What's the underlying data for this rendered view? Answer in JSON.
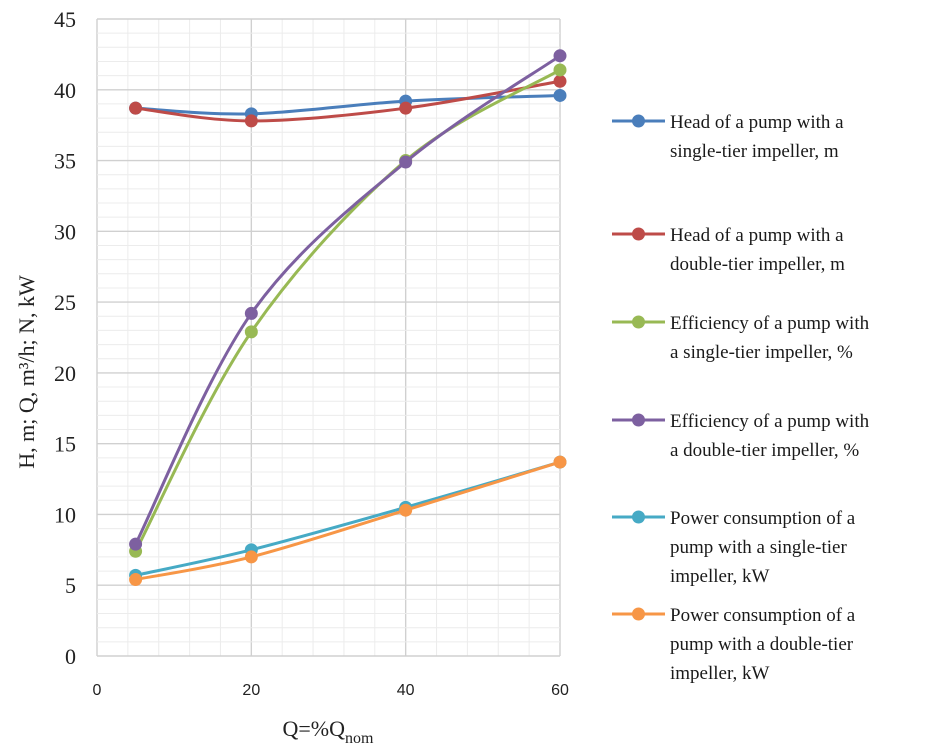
{
  "chart_data": {
    "type": "line",
    "xlabel_main": "Q=%Q",
    "xlabel_sub": "nom",
    "ylabel": "H, m; Q, m³/h; N, kW",
    "xlim": [
      0,
      60
    ],
    "ylim": [
      0,
      45
    ],
    "x_ticks": [
      0,
      20,
      40,
      60
    ],
    "y_ticks": [
      0,
      5,
      10,
      15,
      20,
      25,
      30,
      35,
      40,
      45
    ],
    "grid": "major and minor",
    "smooth": true,
    "legend_position": "right",
    "x": [
      5,
      20,
      40,
      60
    ],
    "series": [
      {
        "name": "Head of a pump with a single-tier impeller, m",
        "legend_lines": [
          "Head of a pump with a",
          "single-tier impeller, m"
        ],
        "color": "#4A7EBB",
        "values": [
          38.7,
          38.3,
          39.2,
          39.6
        ]
      },
      {
        "name": "Head of a pump with a double-tier impeller, m",
        "legend_lines": [
          "Head of a pump with a",
          "double-tier impeller, m"
        ],
        "color": "#BE4B48",
        "values": [
          38.7,
          37.8,
          38.7,
          40.6
        ]
      },
      {
        "name": "Efficiency of a pump with a single-tier impeller, %",
        "legend_lines": [
          "Efficiency of a pump with",
          "a single-tier impeller, %"
        ],
        "color": "#98B954",
        "values": [
          7.4,
          22.9,
          35.0,
          41.4
        ]
      },
      {
        "name": "Efficiency of a pump with a double-tier impeller, %",
        "legend_lines": [
          "Efficiency of a pump with",
          "a double-tier impeller, %"
        ],
        "color": "#7D60A0",
        "values": [
          7.9,
          24.2,
          34.9,
          42.4
        ]
      },
      {
        "name": "Power consumption of a pump with a single-tier impeller, kW",
        "legend_lines": [
          "Power consumption of a",
          "pump with a single-tier",
          "impeller, kW"
        ],
        "color": "#46AAC5",
        "values": [
          5.7,
          7.5,
          10.5,
          13.7
        ]
      },
      {
        "name": "Power consumption of a pump with a double-tier impeller, kW",
        "legend_lines": [
          "Power consumption of a",
          "pump with a double-tier",
          "impeller, kW"
        ],
        "color": "#F79646",
        "values": [
          5.4,
          7.0,
          10.3,
          13.7
        ]
      }
    ]
  }
}
